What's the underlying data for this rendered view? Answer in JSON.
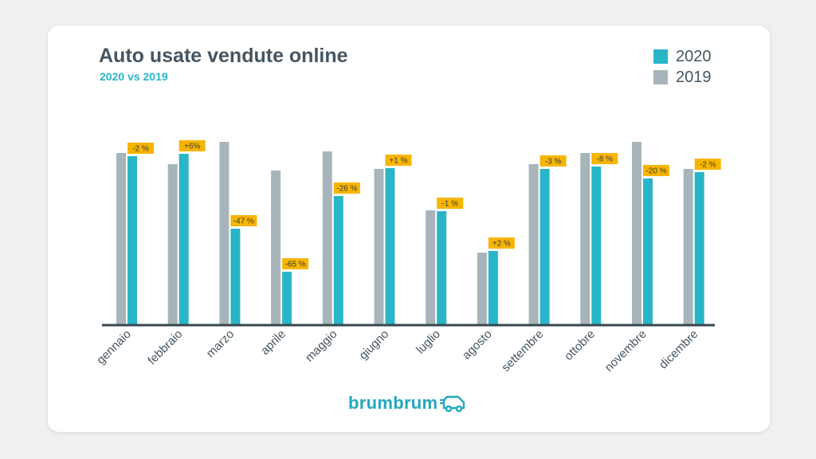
{
  "colors": {
    "series_2020": "#29b5c8",
    "series_2019": "#a7b5ba",
    "label_bg": "#f7b500",
    "axis": "#37474f",
    "brand": "#22a8bd"
  },
  "brand": {
    "name": "brumbrum",
    "icon": "car-icon"
  },
  "chart_data": {
    "type": "bar",
    "title": "Auto usate vendute online",
    "subtitle": "2020 vs 2019",
    "categories": [
      "gennaio",
      "febbraio",
      "marzo",
      "aprile",
      "maggio",
      "giugno",
      "luglio",
      "agosto",
      "settembre",
      "ottobre",
      "novembre",
      "dicembre"
    ],
    "series": [
      {
        "name": "2019",
        "values": [
          216,
          202,
          230,
          194,
          218,
          196,
          144,
          91,
          202,
          216,
          230,
          196
        ]
      },
      {
        "name": "2020",
        "values": [
          212,
          215,
          121,
          67,
          162,
          197,
          143,
          93,
          196,
          199,
          184,
          192
        ]
      }
    ],
    "data_labels": [
      "-2 %",
      "+6%",
      "-47 %",
      "-65 %",
      "-26 %",
      "+1 %",
      "-1 %",
      "+2 %",
      "-3 %",
      "-8 %",
      "-20 %",
      "-2 %"
    ],
    "ylim": [
      0,
      240
    ],
    "legend": {
      "position": "top-right",
      "order": [
        "2020",
        "2019"
      ]
    },
    "grid": false
  }
}
